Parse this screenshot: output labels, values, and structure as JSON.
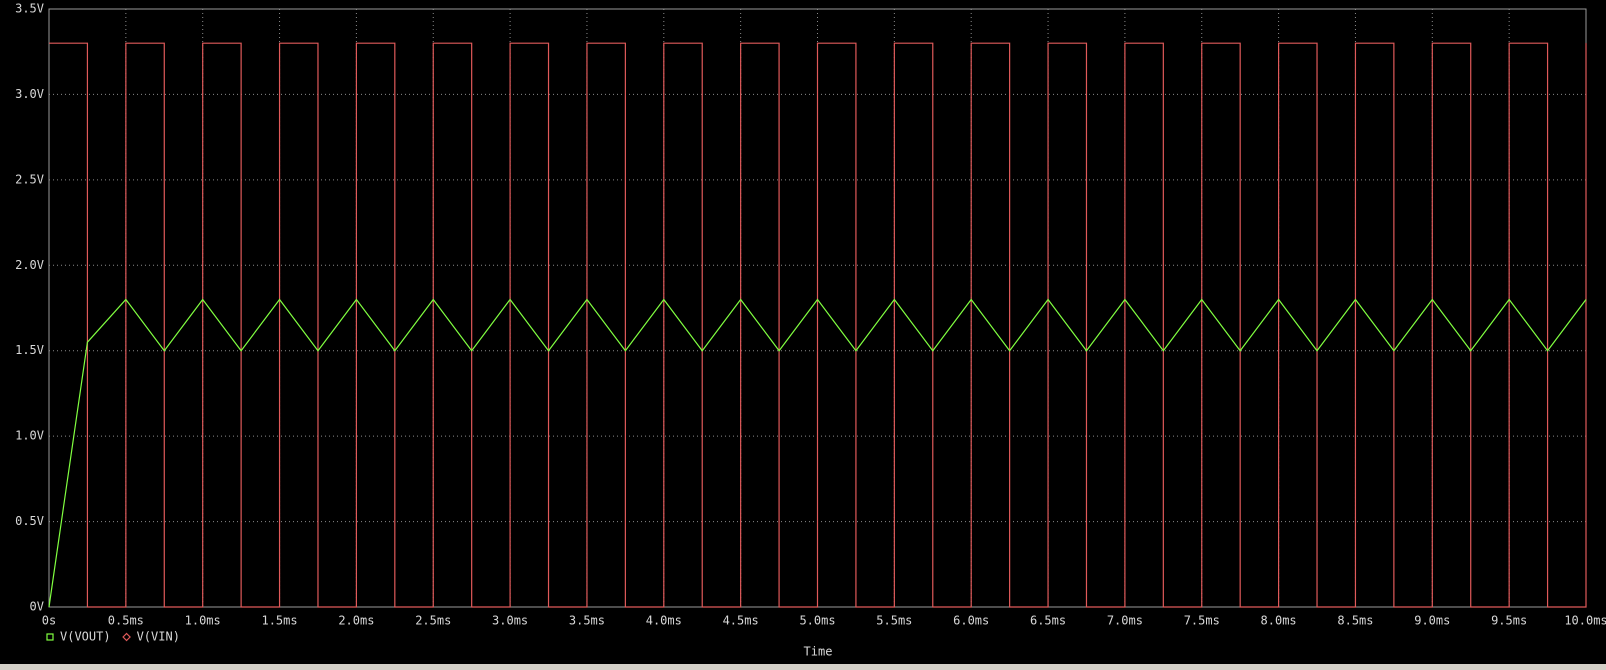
{
  "chart_data": {
    "type": "line",
    "x": [
      0,
      0.25,
      0.5,
      0.75,
      1,
      1.25,
      1.5,
      1.75,
      2,
      2.25,
      2.5,
      2.75,
      3,
      3.25,
      3.5,
      3.75,
      4,
      4.25,
      4.5,
      4.75,
      5,
      5.25,
      5.5,
      5.75,
      6,
      6.25,
      6.5,
      6.75,
      7,
      7.25,
      7.5,
      7.75,
      8,
      8.25,
      8.5,
      8.75,
      9,
      9.25,
      9.5,
      9.75,
      10
    ],
    "series": [
      {
        "name": "V(VOUT)",
        "color": "#80ff40",
        "marker": "square",
        "step": false,
        "values": [
          0,
          1.55,
          1.8,
          1.5,
          1.8,
          1.5,
          1.8,
          1.5,
          1.8,
          1.5,
          1.8,
          1.5,
          1.8,
          1.5,
          1.8,
          1.5,
          1.8,
          1.5,
          1.8,
          1.5,
          1.8,
          1.5,
          1.8,
          1.5,
          1.8,
          1.5,
          1.8,
          1.5,
          1.8,
          1.5,
          1.8,
          1.5,
          1.8,
          1.5,
          1.8,
          1.5,
          1.8,
          1.5,
          1.8,
          1.5,
          1.8
        ]
      },
      {
        "name": "V(VIN)",
        "color": "#e05a5a",
        "marker": "diamond",
        "step": true,
        "values": [
          3.3,
          0,
          3.3,
          0,
          3.3,
          0,
          3.3,
          0,
          3.3,
          0,
          3.3,
          0,
          3.3,
          0,
          3.3,
          0,
          3.3,
          0,
          3.3,
          0,
          3.3,
          0,
          3.3,
          0,
          3.3,
          0,
          3.3,
          0,
          3.3,
          0,
          3.3,
          0,
          3.3,
          0,
          3.3,
          0,
          3.3,
          0,
          3.3,
          0,
          3.3
        ]
      }
    ],
    "xlabel": "Time",
    "xlim": [
      0,
      10
    ],
    "xticks": [
      {
        "value": 0,
        "label": "0s"
      },
      {
        "value": 0.5,
        "label": "0.5ms"
      },
      {
        "value": 1,
        "label": "1.0ms"
      },
      {
        "value": 1.5,
        "label": "1.5ms"
      },
      {
        "value": 2,
        "label": "2.0ms"
      },
      {
        "value": 2.5,
        "label": "2.5ms"
      },
      {
        "value": 3,
        "label": "3.0ms"
      },
      {
        "value": 3.5,
        "label": "3.5ms"
      },
      {
        "value": 4,
        "label": "4.0ms"
      },
      {
        "value": 4.5,
        "label": "4.5ms"
      },
      {
        "value": 5,
        "label": "5.0ms"
      },
      {
        "value": 5.5,
        "label": "5.5ms"
      },
      {
        "value": 6,
        "label": "6.0ms"
      },
      {
        "value": 6.5,
        "label": "6.5ms"
      },
      {
        "value": 7,
        "label": "7.0ms"
      },
      {
        "value": 7.5,
        "label": "7.5ms"
      },
      {
        "value": 8,
        "label": "8.0ms"
      },
      {
        "value": 8.5,
        "label": "8.5ms"
      },
      {
        "value": 9,
        "label": "9.0ms"
      },
      {
        "value": 9.5,
        "label": "9.5ms"
      },
      {
        "value": 10,
        "label": "10.0ms"
      }
    ],
    "ylim": [
      0,
      3.5
    ],
    "yticks": [
      {
        "value": 0,
        "label": "0V"
      },
      {
        "value": 0.5,
        "label": "0.5V"
      },
      {
        "value": 1,
        "label": "1.0V"
      },
      {
        "value": 1.5,
        "label": "1.5V"
      },
      {
        "value": 2,
        "label": "2.0V"
      },
      {
        "value": 2.5,
        "label": "2.5V"
      },
      {
        "value": 3,
        "label": "3.0V"
      },
      {
        "value": 3.5,
        "label": "3.5V"
      }
    ],
    "grid": true
  }
}
